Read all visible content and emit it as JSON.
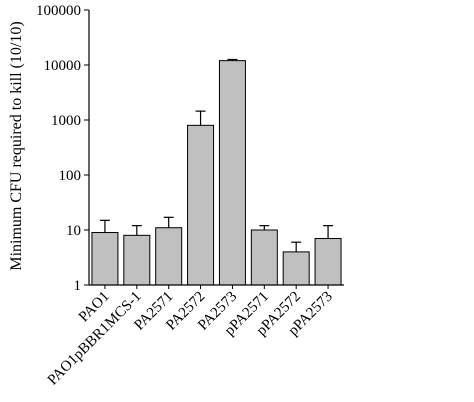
{
  "chart_data": {
    "type": "bar",
    "title": "",
    "xlabel": "",
    "ylabel": "Minimum CFU required to kill (10/10)",
    "yscale": "log",
    "ylim": [
      1,
      100000
    ],
    "yticks": [
      1,
      10,
      100,
      1000,
      10000,
      100000
    ],
    "ytick_labels": [
      "1",
      "10",
      "100",
      "1000",
      "10000",
      "100000"
    ],
    "grid": false,
    "legend": "none",
    "bar_color": "#c0c0c0",
    "categories": [
      "PAO1",
      "PAO1pBBR1MCS-1",
      "PA2571",
      "PA2572",
      "PA2573",
      "pPA2571",
      "pPA2572",
      "pPA2573"
    ],
    "values": [
      9,
      8,
      11,
      800,
      12000,
      10,
      4,
      7
    ],
    "error_upper": [
      15,
      12,
      17,
      1450,
      12600,
      12,
      6,
      12
    ]
  }
}
